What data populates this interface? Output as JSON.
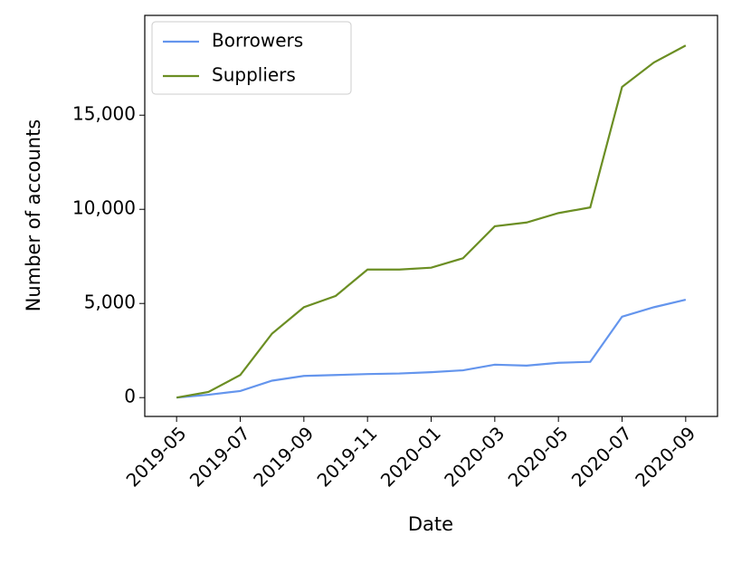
{
  "chart_data": {
    "type": "line",
    "x_label": "Date",
    "y_label": "Number of accounts",
    "x": [
      "2019-05",
      "2019-06",
      "2019-07",
      "2019-08",
      "2019-09",
      "2019-10",
      "2019-11",
      "2019-12",
      "2020-01",
      "2020-02",
      "2020-03",
      "2020-04",
      "2020-05",
      "2020-06",
      "2020-07",
      "2020-08",
      "2020-09"
    ],
    "series": [
      {
        "name": "Borrowers",
        "color": "#6495ed",
        "values": [
          0,
          150,
          350,
          900,
          1150,
          1200,
          1250,
          1280,
          1350,
          1450,
          1750,
          1700,
          1850,
          1900,
          4300,
          4800,
          5200
        ]
      },
      {
        "name": "Suppliers",
        "color": "#6b8e23",
        "values": [
          0,
          300,
          1200,
          3400,
          4800,
          5400,
          6800,
          6800,
          6900,
          7400,
          9100,
          9300,
          9800,
          10100,
          16500,
          17800,
          18700
        ]
      }
    ],
    "xlim": [
      "2019-04",
      "2020-10"
    ],
    "xticks": [
      "2019-05",
      "2019-07",
      "2019-09",
      "2019-11",
      "2020-01",
      "2020-03",
      "2020-05",
      "2020-07",
      "2020-09"
    ],
    "ylim": [
      -1000,
      20300
    ],
    "yticks": [
      0,
      {
        "value": 5000,
        "label": "5,000"
      },
      {
        "value": 10000,
        "label": "10,000"
      },
      {
        "value": 15000,
        "label": "15,000"
      }
    ],
    "grid": false,
    "legend": "upper left"
  }
}
